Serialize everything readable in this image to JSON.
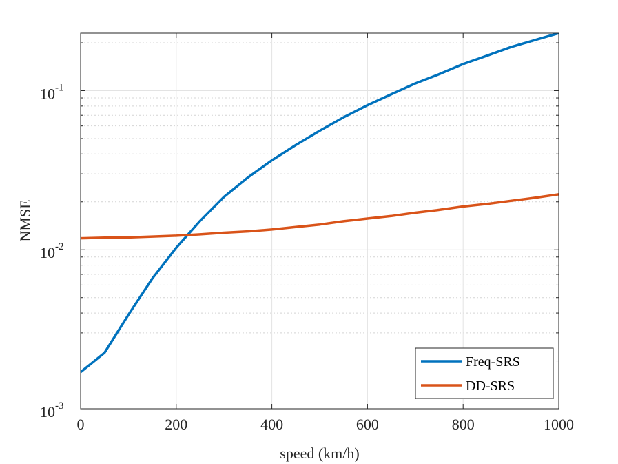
{
  "chart_data": {
    "type": "line",
    "title": "",
    "xlabel": "speed (km/h)",
    "ylabel": "NMSE",
    "xlim": [
      0,
      1000
    ],
    "ylim": [
      0.001,
      0.23
    ],
    "yscale": "log",
    "grid": true,
    "legend_position": "bottom-right",
    "x_ticks": [
      0,
      200,
      400,
      600,
      800,
      1000
    ],
    "x_tick_labels": [
      "0",
      "200",
      "400",
      "600",
      "800",
      "1000"
    ],
    "y_ticks": [
      0.001,
      0.01,
      0.1
    ],
    "y_tick_labels": [
      {
        "base": "10",
        "exp": "-3"
      },
      {
        "base": "10",
        "exp": "-2"
      },
      {
        "base": "10",
        "exp": "-1"
      }
    ],
    "x": [
      0,
      50,
      100,
      150,
      200,
      250,
      300,
      350,
      400,
      450,
      500,
      550,
      600,
      650,
      700,
      750,
      800,
      850,
      900,
      950,
      1000
    ],
    "series": [
      {
        "name": "Freq-SRS",
        "color": "#0072BD",
        "values": [
          0.0017,
          0.00225,
          0.0039,
          0.0066,
          0.0103,
          0.0152,
          0.0215,
          0.0285,
          0.0365,
          0.0455,
          0.056,
          0.068,
          0.081,
          0.095,
          0.111,
          0.127,
          0.147,
          0.166,
          0.188,
          0.208,
          0.23
        ]
      },
      {
        "name": "DD-SRS",
        "color": "#D95319",
        "values": [
          0.0118,
          0.0119,
          0.01195,
          0.0121,
          0.01225,
          0.0125,
          0.0128,
          0.01305,
          0.0134,
          0.0139,
          0.0144,
          0.0151,
          0.0157,
          0.0163,
          0.0171,
          0.0178,
          0.0187,
          0.0194,
          0.0203,
          0.0212,
          0.0223
        ]
      }
    ]
  }
}
